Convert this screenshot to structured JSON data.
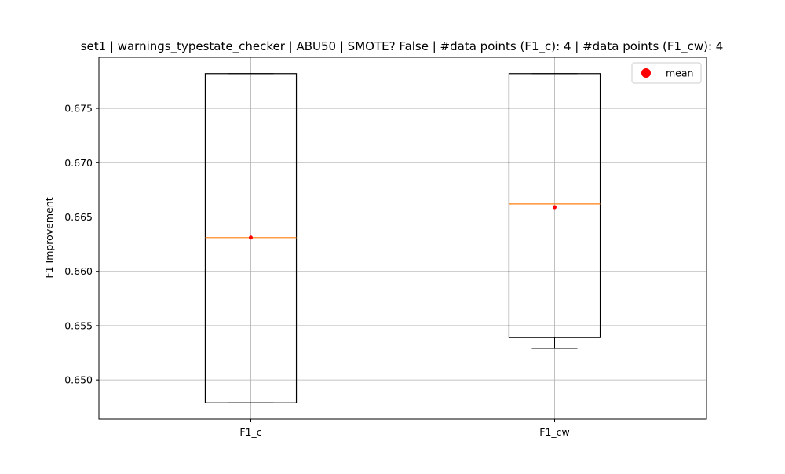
{
  "chart_data": {
    "type": "box",
    "title": "set1 | warnings_typestate_checker | ABU50 | SMOTE? False | #data points (F1_c): 4 | #data points (F1_cw): 4",
    "xlabel": "",
    "ylabel": "F1 Improvement",
    "categories": [
      "F1_c",
      "F1_cw"
    ],
    "ylim": [
      0.6464,
      0.6797
    ],
    "yticks": [
      0.65,
      0.655,
      0.66,
      0.665,
      0.67,
      0.675
    ],
    "ytick_labels": [
      "0.650",
      "0.655",
      "0.660",
      "0.665",
      "0.670",
      "0.675"
    ],
    "grid": true,
    "legend": {
      "placement": "upper-right",
      "entries": [
        {
          "label": "mean",
          "marker": "circle",
          "color": "#ff0000"
        }
      ]
    },
    "boxes": [
      {
        "category": "F1_c",
        "whisker_low": 0.6479,
        "q1": 0.6479,
        "median": 0.6631,
        "q3": 0.6782,
        "whisker_high": 0.6782,
        "mean": 0.6631
      },
      {
        "category": "F1_cw",
        "whisker_low": 0.6529,
        "q1": 0.6539,
        "median": 0.6662,
        "q3": 0.6782,
        "whisker_high": 0.6782,
        "mean": 0.6659
      }
    ],
    "colors": {
      "box": "#000000",
      "median": "#ff7f0e",
      "mean": "#ff0000",
      "grid": "#b0b0b0"
    }
  }
}
